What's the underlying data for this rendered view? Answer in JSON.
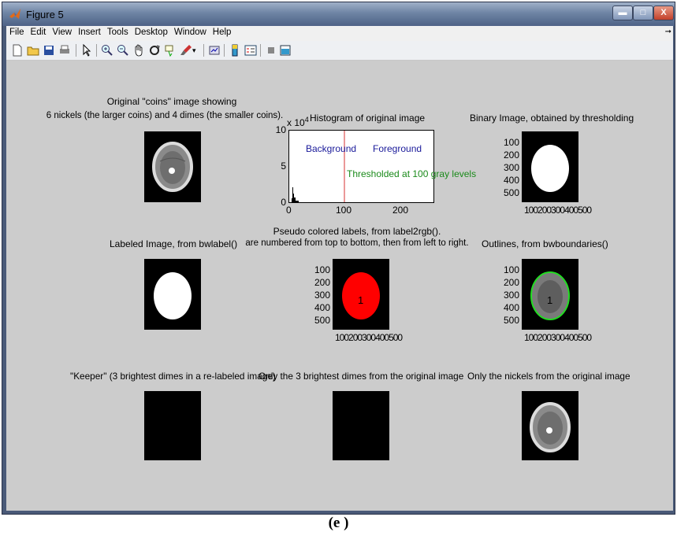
{
  "window": {
    "title": "Figure 5"
  },
  "menu": [
    "File",
    "Edit",
    "View",
    "Insert",
    "Tools",
    "Desktop",
    "Window",
    "Help"
  ],
  "toolbar_icons": [
    "new-figure-icon",
    "open-file-icon",
    "save-icon",
    "print-icon",
    "pointer-icon",
    "zoom-in-icon",
    "zoom-out-icon",
    "pan-icon",
    "rotate-3d-icon",
    "data-cursor-icon",
    "brush-icon",
    "brush-dropdown-icon",
    "link-plot-icon",
    "colorbar-icon",
    "legend-icon",
    "hide-plot-tools-icon",
    "show-plot-tools-icon"
  ],
  "figure": {
    "original_title_1": "Original \"coins\" image showing",
    "original_title_2": "6 nickels (the larger coins) and 4 dimes (the smaller coins).",
    "histogram": {
      "exponent": "x 10",
      "exponent_power": "4",
      "title": "Histogram of original image",
      "y_ticks": [
        "10",
        "5",
        "0"
      ],
      "x_ticks": [
        "0",
        "100",
        "200"
      ],
      "background_label": "Background",
      "foreground_label": "Foreground",
      "threshold_label": "Thresholded at 100 gray levels"
    },
    "binary_title": "Binary Image, obtained by thresholding",
    "labeled_title": "Labeled Image, from bwlabel()",
    "pseudo_title_1": "Pseudo colored labels, from label2rgb().",
    "pseudo_title_2": "are numbered from top to bottom, then from left to right.",
    "outlines_title": "Outlines, from bwboundaries()",
    "axis_y_ticks": [
      "100",
      "200",
      "300",
      "400",
      "500"
    ],
    "axis_x_ticks": "100200300400500",
    "region_label": "1",
    "keeper_title": "\"Keeper\"  (3 brightest dimes in a re-labeled image)",
    "brightest_title": "Only the 3 brightest dimes from the original image",
    "nickels_title": "Only the nickels from the original image"
  },
  "caption": "(e )",
  "colors": {
    "pseudo_fill": "#ff0000",
    "outline": "#22dd22",
    "threshold_line": "#e06060",
    "hist_text": "#1a1a9a",
    "threshold_text": "#1a8a1a"
  }
}
